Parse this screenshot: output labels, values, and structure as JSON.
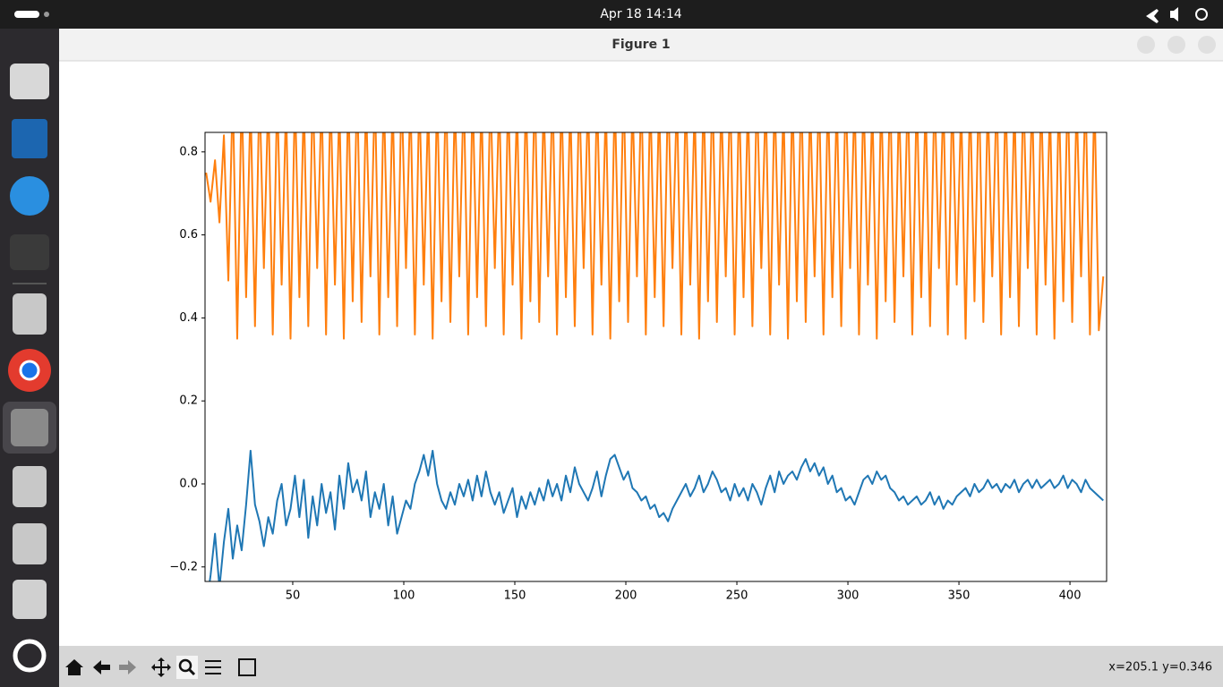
{
  "ui": {
    "clock": "Apr 18  14:14",
    "window_title": "Figure 1",
    "status": "x=205.1 y=0.346"
  },
  "chart_data": {
    "type": "line",
    "x": [
      11,
      13,
      15,
      17,
      19,
      21,
      23,
      25,
      27,
      29,
      31,
      33,
      35,
      37,
      39,
      41,
      43,
      45,
      47,
      49,
      51,
      53,
      55,
      57,
      59,
      61,
      63,
      65,
      67,
      69,
      71,
      73,
      75,
      77,
      79,
      81,
      83,
      85,
      87,
      89,
      91,
      93,
      95,
      97,
      99,
      101,
      103,
      105,
      107,
      109,
      111,
      113,
      115,
      117,
      119,
      121,
      123,
      125,
      127,
      129,
      131,
      133,
      135,
      137,
      139,
      141,
      143,
      145,
      147,
      149,
      151,
      153,
      155,
      157,
      159,
      161,
      163,
      165,
      167,
      169,
      171,
      173,
      175,
      177,
      179,
      181,
      183,
      185,
      187,
      189,
      191,
      193,
      195,
      197,
      199,
      201,
      203,
      205,
      207,
      209,
      211,
      213,
      215,
      217,
      219,
      221,
      223,
      225,
      227,
      229,
      231,
      233,
      235,
      237,
      239,
      241,
      243,
      245,
      247,
      249,
      251,
      253,
      255,
      257,
      259,
      261,
      263,
      265,
      267,
      269,
      271,
      273,
      275,
      277,
      279,
      281,
      283,
      285,
      287,
      289,
      291,
      293,
      295,
      297,
      299,
      301,
      303,
      305,
      307,
      309,
      311,
      313,
      315,
      317,
      319,
      321,
      323,
      325,
      327,
      329,
      331,
      333,
      335,
      337,
      339,
      341,
      343,
      345,
      347,
      349,
      351,
      353,
      355,
      357,
      359,
      361,
      363,
      365,
      367,
      369,
      371,
      373,
      375,
      377,
      379,
      381,
      383,
      385,
      387,
      389,
      391,
      393,
      395,
      397,
      399,
      401,
      403,
      405,
      407,
      409,
      411,
      413,
      415
    ],
    "series": [
      {
        "color": "#1f77b4",
        "values": [
          -0.3,
          -0.22,
          -0.12,
          -0.25,
          -0.14,
          -0.06,
          -0.18,
          -0.1,
          -0.16,
          -0.05,
          0.08,
          -0.05,
          -0.09,
          -0.15,
          -0.08,
          -0.12,
          -0.04,
          0.0,
          -0.1,
          -0.06,
          0.02,
          -0.08,
          0.01,
          -0.13,
          -0.03,
          -0.1,
          0.0,
          -0.07,
          -0.02,
          -0.11,
          0.02,
          -0.06,
          0.05,
          -0.02,
          0.01,
          -0.04,
          0.03,
          -0.08,
          -0.02,
          -0.06,
          0.0,
          -0.1,
          -0.03,
          -0.12,
          -0.08,
          -0.04,
          -0.06,
          0.0,
          0.03,
          0.07,
          0.02,
          0.08,
          0.0,
          -0.04,
          -0.06,
          -0.02,
          -0.05,
          0.0,
          -0.03,
          0.01,
          -0.04,
          0.02,
          -0.03,
          0.03,
          -0.02,
          -0.05,
          -0.02,
          -0.07,
          -0.04,
          -0.01,
          -0.08,
          -0.03,
          -0.06,
          -0.02,
          -0.05,
          -0.01,
          -0.04,
          0.01,
          -0.03,
          0.0,
          -0.04,
          0.02,
          -0.02,
          0.04,
          0.0,
          -0.02,
          -0.04,
          -0.01,
          0.03,
          -0.03,
          0.02,
          0.06,
          0.07,
          0.04,
          0.01,
          0.03,
          -0.01,
          -0.02,
          -0.04,
          -0.03,
          -0.06,
          -0.05,
          -0.08,
          -0.07,
          -0.09,
          -0.06,
          -0.04,
          -0.02,
          0.0,
          -0.03,
          -0.01,
          0.02,
          -0.02,
          0.0,
          0.03,
          0.01,
          -0.02,
          -0.01,
          -0.04,
          0.0,
          -0.03,
          -0.01,
          -0.04,
          0.0,
          -0.02,
          -0.05,
          -0.01,
          0.02,
          -0.02,
          0.03,
          0.0,
          0.02,
          0.03,
          0.01,
          0.04,
          0.06,
          0.03,
          0.05,
          0.02,
          0.04,
          0.0,
          0.02,
          -0.02,
          -0.01,
          -0.04,
          -0.03,
          -0.05,
          -0.02,
          0.01,
          0.02,
          0.0,
          0.03,
          0.01,
          0.02,
          -0.01,
          -0.02,
          -0.04,
          -0.03,
          -0.05,
          -0.04,
          -0.03,
          -0.05,
          -0.04,
          -0.02,
          -0.05,
          -0.03,
          -0.06,
          -0.04,
          -0.05,
          -0.03,
          -0.02,
          -0.01,
          -0.03,
          0.0,
          -0.02,
          -0.01,
          0.01,
          -0.01,
          0.0,
          -0.02,
          0.0,
          -0.01,
          0.01,
          -0.02,
          0.0,
          0.01,
          -0.01,
          0.01,
          -0.01,
          0.0,
          0.01,
          -0.01,
          0.0,
          0.02,
          -0.01,
          0.01,
          0.0,
          -0.02,
          0.01,
          -0.01,
          -0.02,
          -0.03,
          -0.04
        ]
      },
      {
        "color": "#ff7f0e",
        "values": [
          0.75,
          0.68,
          0.78,
          0.63,
          0.84,
          0.49,
          0.95,
          0.35,
          0.95,
          0.45,
          0.93,
          0.38,
          0.96,
          0.52,
          0.94,
          0.36,
          0.95,
          0.48,
          0.92,
          0.35,
          0.95,
          0.45,
          0.93,
          0.38,
          0.96,
          0.52,
          0.94,
          0.36,
          0.95,
          0.48,
          0.92,
          0.35,
          0.95,
          0.44,
          0.97,
          0.39,
          0.93,
          0.5,
          0.96,
          0.36,
          0.95,
          0.45,
          0.93,
          0.38,
          0.96,
          0.52,
          0.94,
          0.36,
          0.95,
          0.48,
          0.92,
          0.35,
          0.95,
          0.44,
          0.97,
          0.39,
          0.93,
          0.5,
          0.96,
          0.36,
          0.95,
          0.45,
          0.93,
          0.38,
          0.96,
          0.52,
          0.94,
          0.36,
          0.95,
          0.48,
          0.92,
          0.35,
          0.95,
          0.44,
          0.97,
          0.39,
          0.93,
          0.5,
          0.96,
          0.36,
          0.95,
          0.45,
          0.93,
          0.38,
          0.96,
          0.52,
          0.94,
          0.36,
          0.95,
          0.48,
          0.92,
          0.35,
          0.95,
          0.44,
          0.97,
          0.39,
          0.93,
          0.5,
          0.96,
          0.36,
          0.95,
          0.45,
          0.93,
          0.38,
          0.96,
          0.52,
          0.94,
          0.36,
          0.95,
          0.48,
          0.92,
          0.35,
          0.95,
          0.44,
          0.97,
          0.39,
          0.93,
          0.5,
          0.96,
          0.36,
          0.95,
          0.45,
          0.93,
          0.38,
          0.96,
          0.52,
          0.94,
          0.36,
          0.95,
          0.48,
          0.92,
          0.35,
          0.95,
          0.44,
          0.97,
          0.39,
          0.93,
          0.5,
          0.96,
          0.36,
          0.95,
          0.45,
          0.93,
          0.38,
          0.96,
          0.52,
          0.94,
          0.36,
          0.95,
          0.48,
          0.92,
          0.35,
          0.95,
          0.44,
          0.97,
          0.39,
          0.93,
          0.5,
          0.96,
          0.36,
          0.95,
          0.45,
          0.93,
          0.38,
          0.96,
          0.52,
          0.94,
          0.36,
          0.95,
          0.48,
          0.92,
          0.35,
          0.95,
          0.44,
          0.97,
          0.39,
          0.93,
          0.5,
          0.96,
          0.36,
          0.95,
          0.45,
          0.93,
          0.38,
          0.96,
          0.52,
          0.94,
          0.36,
          0.95,
          0.48,
          0.92,
          0.35,
          0.95,
          0.44,
          0.97,
          0.39,
          0.93,
          0.5,
          0.96,
          0.36,
          0.95,
          0.37,
          0.5
        ]
      }
    ],
    "xlim": [
      10.5,
      416.5
    ],
    "ylim": [
      -0.235,
      0.847
    ],
    "xticks": [
      50,
      100,
      150,
      200,
      250,
      300,
      350,
      400
    ],
    "yticks": [
      {
        "value": -0.2,
        "label": "−0.2"
      },
      {
        "value": 0,
        "label": "0.0"
      },
      0.2,
      0.4,
      0.6,
      0.8
    ]
  }
}
